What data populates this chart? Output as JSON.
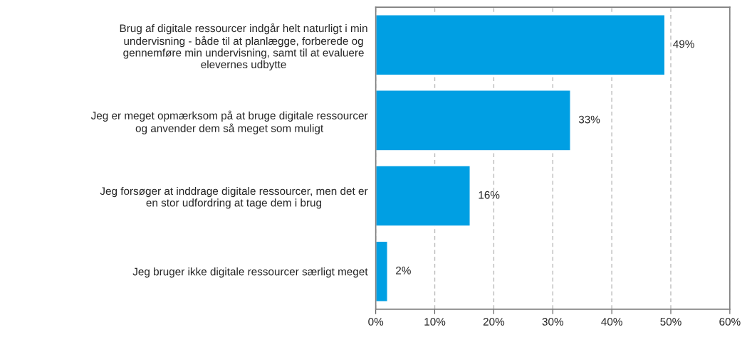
{
  "chart_data": {
    "type": "bar",
    "orientation": "horizontal",
    "categories": [
      "Brug af digitale ressourcer indgår helt naturligt i min\nundervisning - både til at planlægge, forberede og\ngennemføre min undervisning, samt til at evaluere\nelevernes udbytte",
      "Jeg er meget opmærksom på at bruge digitale ressourcer\nog anvender dem så meget som muligt",
      "Jeg forsøger at inddrage digitale ressourcer, men det er\nen stor udfordring at tage dem i brug",
      "Jeg bruger ikke digitale ressourcer særligt meget"
    ],
    "values": [
      49,
      33,
      16,
      2
    ],
    "value_labels": [
      "49%",
      "33%",
      "16%",
      "2%"
    ],
    "color": "#009fe3",
    "xlim": [
      0,
      60
    ],
    "xticks": [
      {
        "value": 0,
        "label": "0%"
      },
      {
        "value": 10,
        "label": "10%"
      },
      {
        "value": 20,
        "label": "20%"
      },
      {
        "value": 30,
        "label": "30%"
      },
      {
        "value": 40,
        "label": "40%"
      },
      {
        "value": 50,
        "label": "50%"
      },
      {
        "value": 60,
        "label": "60%"
      }
    ],
    "grid": "x",
    "legend": false
  }
}
